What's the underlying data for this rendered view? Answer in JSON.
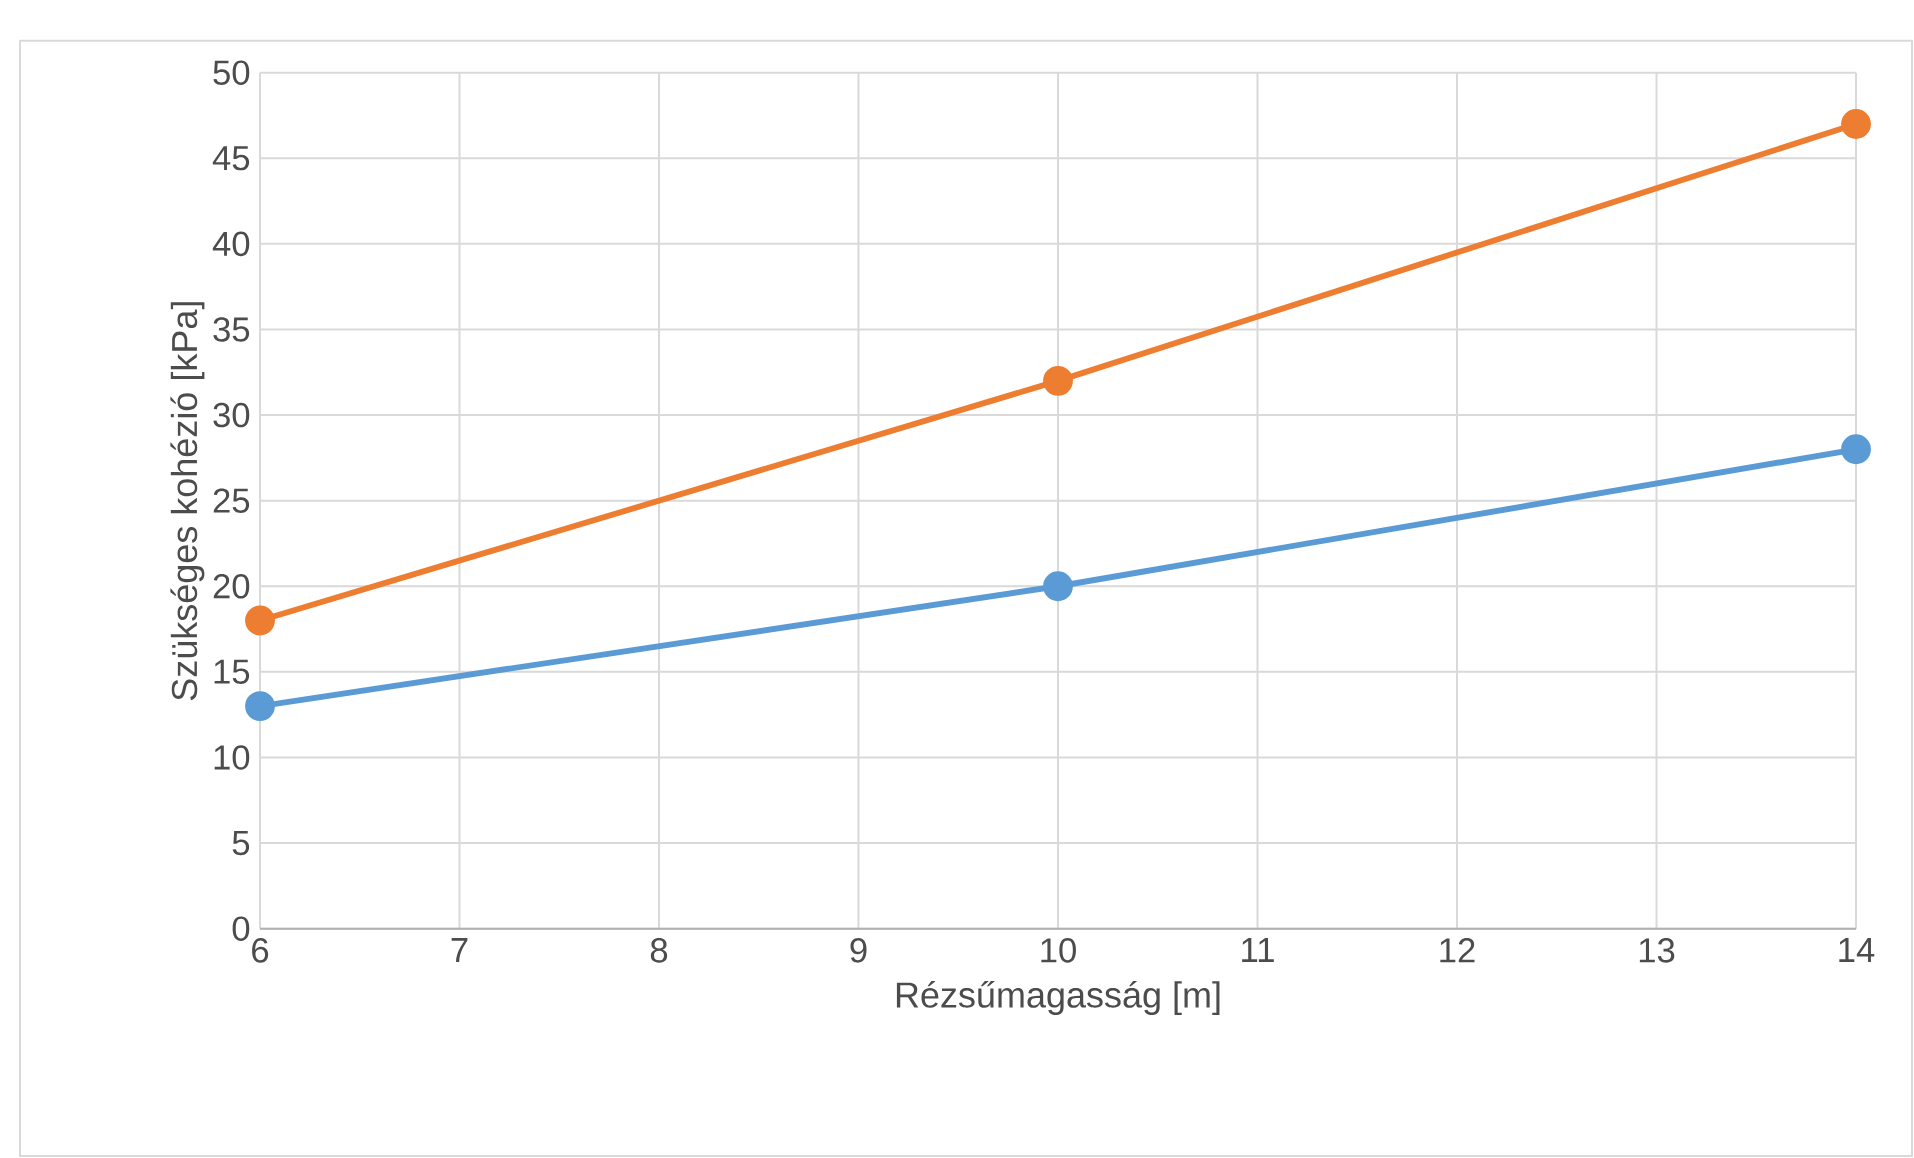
{
  "chart_data": {
    "type": "line",
    "xlabel": "Rézsűmagasság [m]",
    "ylabel": "Szükséges kohézió [kPa]",
    "x": [
      6,
      10,
      14
    ],
    "series": [
      {
        "color": "#5b9bd5",
        "values": [
          13,
          20,
          28
        ]
      },
      {
        "color": "#ed7d31",
        "values": [
          18,
          32,
          47
        ]
      }
    ],
    "xlim": [
      6,
      14
    ],
    "xticks": [
      6,
      7,
      8,
      9,
      10,
      11,
      12,
      13,
      14
    ],
    "ylim": [
      0,
      50
    ],
    "yticks": [
      0,
      5,
      10,
      15,
      20,
      25,
      30,
      35,
      40,
      45,
      50
    ],
    "grid": true,
    "marker": "circle",
    "line_style": "solid"
  }
}
